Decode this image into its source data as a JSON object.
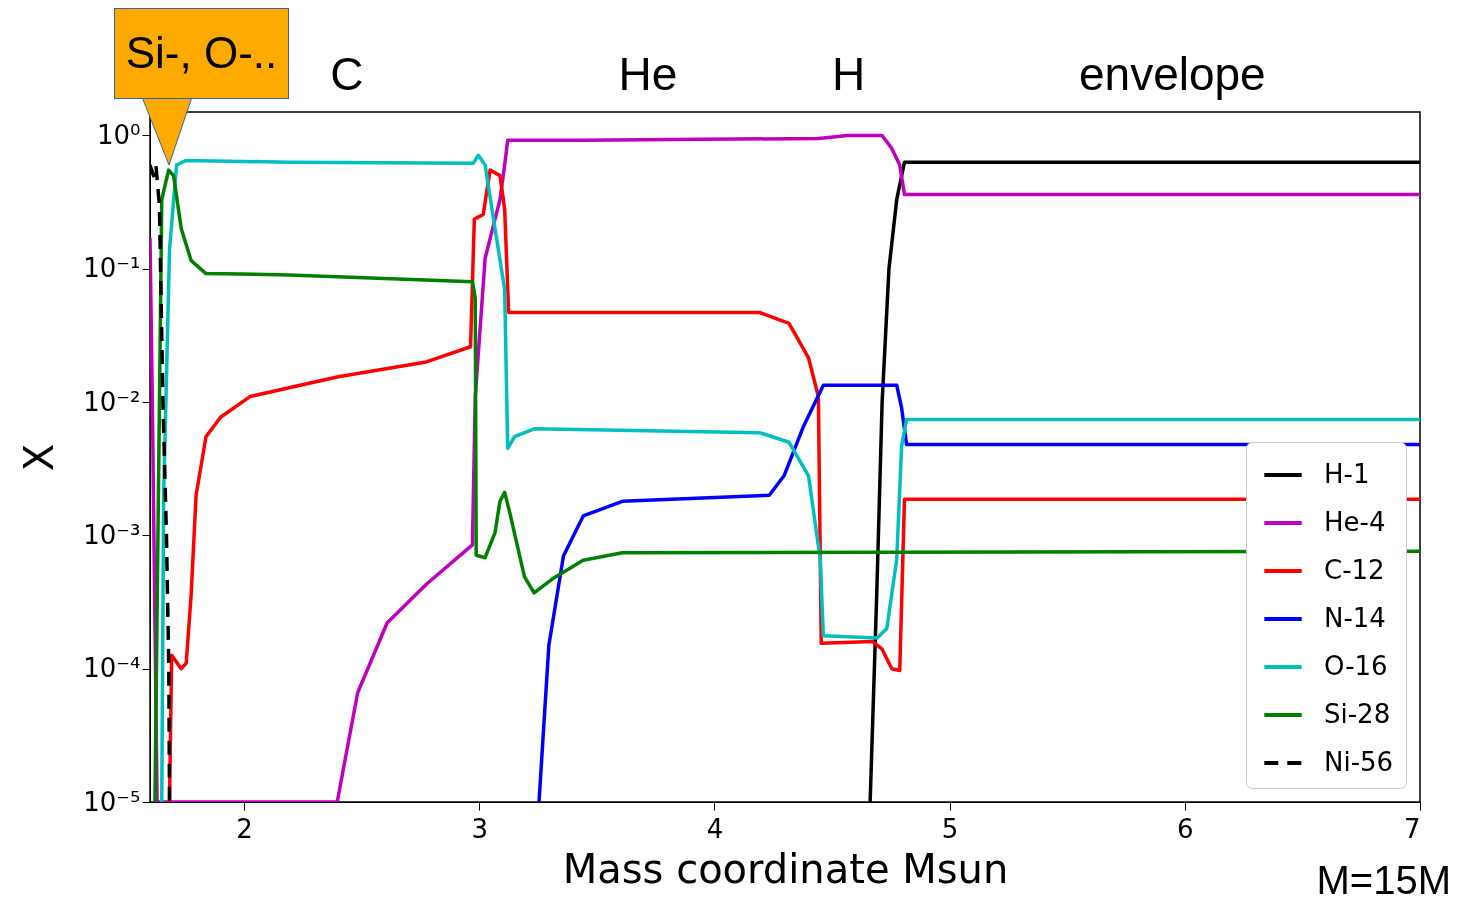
{
  "chart_data": {
    "type": "line",
    "xlabel": "Mass coordinate Msun",
    "ylabel": "X",
    "log": "y",
    "xlim": [
      1.6,
      7
    ],
    "xticks": [
      2,
      3,
      4,
      5,
      6,
      7
    ],
    "ylim": [
      1e-05,
      1.5
    ],
    "yticks": [
      {
        "value": 1,
        "label": "10⁰"
      },
      {
        "value": 0.1,
        "label": "10⁻¹"
      },
      {
        "value": 0.01,
        "label": "10⁻²"
      },
      {
        "value": 0.001,
        "label": "10⁻³"
      },
      {
        "value": 0.0001,
        "label": "10⁻⁴"
      },
      {
        "value": 1e-05,
        "label": "10⁻⁵"
      }
    ],
    "legend": "bottom right",
    "annotations": [
      {
        "text": "Si-, O-..",
        "x": 1.68,
        "y": 0.6
      },
      "C",
      "He",
      "H",
      "envelope",
      "M=15M"
    ],
    "series": [
      {
        "name": "H-1",
        "color": "#000000",
        "x": [
          4.662,
          4.69,
          4.713,
          4.742,
          4.775,
          4.808,
          7
        ],
        "values": [
          1e-05,
          0.00036,
          0.01,
          0.1,
          0.33,
          0.63,
          0.63
        ]
      },
      {
        "name": "He-4",
        "color": "#bf00bf",
        "x": [
          1.6,
          1.61,
          1.63,
          2.396,
          2.483,
          2.608,
          2.775,
          2.971,
          2.983,
          3.025,
          3.088,
          3.108,
          3.121,
          3.442,
          4.442,
          4.567,
          4.713,
          4.754,
          4.788,
          4.808,
          7
        ],
        "values": [
          0.17,
          0.01,
          1e-05,
          1e-05,
          6.6e-05,
          0.00022,
          0.00043,
          0.00085,
          0.011,
          0.12,
          0.33,
          0.6,
          0.92,
          0.92,
          0.95,
          1,
          1,
          0.8,
          0.6,
          0.36,
          0.36
        ]
      },
      {
        "name": "C-12",
        "color": "#ff0000",
        "x": [
          1.683,
          1.692,
          1.733,
          1.754,
          1.775,
          1.796,
          1.838,
          1.9,
          2.025,
          2.4,
          2.775,
          2.963,
          2.979,
          3.017,
          3.046,
          3.088,
          3.108,
          3.125,
          4.192,
          4.317,
          4.4,
          4.442,
          4.454,
          4.671,
          4.713,
          4.754,
          4.788,
          4.808,
          7
        ],
        "values": [
          1e-05,
          0.000126,
          0.0001,
          0.00011,
          0.00036,
          0.002,
          0.0055,
          0.0077,
          0.011,
          0.0155,
          0.02,
          0.026,
          0.235,
          0.256,
          0.55,
          0.5,
          0.28,
          0.047,
          0.047,
          0.039,
          0.0215,
          0.011,
          0.000155,
          0.00016,
          0.00014,
          0.0001,
          9.7e-05,
          0.00187,
          0.00187
        ]
      },
      {
        "name": "N-14",
        "color": "#0000ff",
        "x": [
          3.254,
          3.296,
          3.358,
          3.442,
          3.608,
          4.233,
          4.296,
          4.379,
          4.463,
          4.775,
          4.796,
          4.817,
          7
        ],
        "values": [
          1e-05,
          0.00015,
          0.0007,
          0.0014,
          0.0018,
          0.002,
          0.0028,
          0.0066,
          0.0134,
          0.0134,
          0.009,
          0.0048,
          0.0048
        ]
      },
      {
        "name": "O-16",
        "color": "#00bfbf",
        "x": [
          1.65,
          1.658,
          1.683,
          1.713,
          1.754,
          2.192,
          2.975,
          2.996,
          3.025,
          3.067,
          3.108,
          3.121,
          3.15,
          3.233,
          4.192,
          4.317,
          4.4,
          4.45,
          4.463,
          4.692,
          4.733,
          4.775,
          4.796,
          4.817,
          7
        ],
        "values": [
          1e-05,
          0.002,
          0.14,
          0.6,
          0.65,
          0.63,
          0.62,
          0.71,
          0.6,
          0.2,
          0.07,
          0.0045,
          0.0055,
          0.0063,
          0.0059,
          0.005,
          0.0028,
          0.00066,
          0.000177,
          0.00017,
          0.0002,
          0.00066,
          0.0047,
          0.0074,
          0.0074
        ]
      },
      {
        "name": "Si-28",
        "color": "#008000",
        "x": [
          1.621,
          1.65,
          1.679,
          1.7,
          1.733,
          1.775,
          1.838,
          2.192,
          2.971,
          2.983,
          2.987,
          3.025,
          3.067,
          3.088,
          3.108,
          3.129,
          3.192,
          3.233,
          3.317,
          3.442,
          3.608,
          7
        ],
        "values": [
          1e-05,
          0.33,
          0.55,
          0.5,
          0.2,
          0.115,
          0.092,
          0.09,
          0.08,
          0.06,
          0.00071,
          0.00068,
          0.00105,
          0.0018,
          0.0021,
          0.0015,
          0.00049,
          0.00037,
          0.00048,
          0.00065,
          0.00074,
          0.00076
        ]
      },
      {
        "name": "Ni-56",
        "color": "#000000",
        "line_style": "dashed",
        "x": [
          1.6,
          1.615,
          1.625,
          1.64,
          1.655,
          1.67,
          1.68,
          1.683
        ],
        "values": [
          0.6,
          0.5,
          0.6,
          0.3,
          0.01,
          0.001,
          0.0001,
          1e-05
        ]
      }
    ]
  }
}
